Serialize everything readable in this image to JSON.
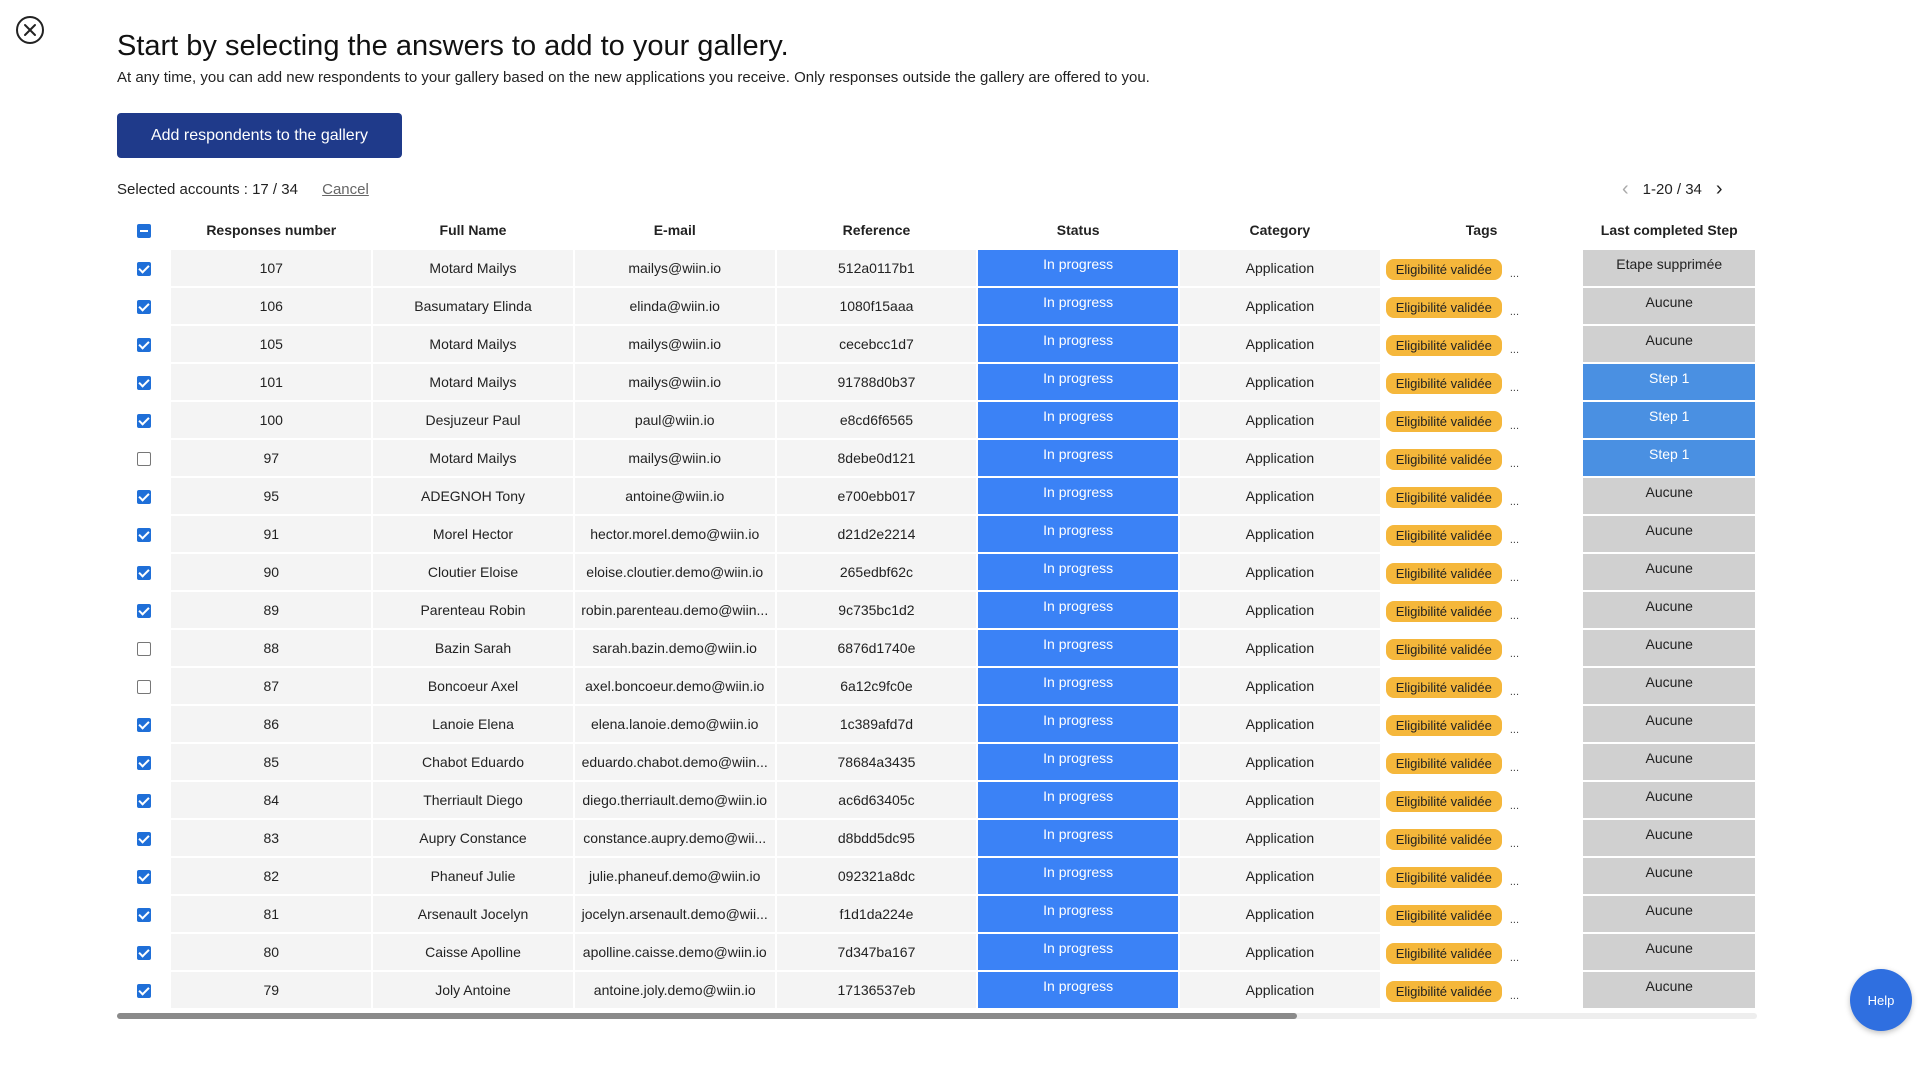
{
  "header": {
    "title": "Start by selecting the answers to add to your gallery.",
    "subtitle": "At any time, you can add new respondents to your gallery based on the new applications you receive. Only responses outside the gallery are offered to you."
  },
  "actions": {
    "add_button": "Add respondents to the gallery",
    "selected_label": "Selected accounts : 17 / 34",
    "cancel_label": "Cancel"
  },
  "pagination": {
    "range": "1-20 / 34"
  },
  "table": {
    "columns": [
      "Responses number",
      "Full Name",
      "E-mail",
      "Reference",
      "Status",
      "Category",
      "Tags",
      "Last completed Step"
    ],
    "rows": [
      {
        "checked": true,
        "number": "107",
        "name": "Motard Mailys",
        "email": "mailys@wiin.io",
        "ref": "512a0117b1",
        "status": "In progress",
        "category": "Application",
        "tag": "Eligibilité validée",
        "more": "...",
        "step": "Etape supprimée",
        "step_style": "grey"
      },
      {
        "checked": true,
        "number": "106",
        "name": "Basumatary Elinda",
        "email": "elinda@wiin.io",
        "ref": "1080f15aaa",
        "status": "In progress",
        "category": "Application",
        "tag": "Eligibilité validée",
        "more": "...",
        "step": "Aucune",
        "step_style": "grey"
      },
      {
        "checked": true,
        "number": "105",
        "name": "Motard Mailys",
        "email": "mailys@wiin.io",
        "ref": "cecebcc1d7",
        "status": "In progress",
        "category": "Application",
        "tag": "Eligibilité validée",
        "more": "...",
        "step": "Aucune",
        "step_style": "grey"
      },
      {
        "checked": true,
        "number": "101",
        "name": "Motard Mailys",
        "email": "mailys@wiin.io",
        "ref": "91788d0b37",
        "status": "In progress",
        "category": "Application",
        "tag": "Eligibilité validée",
        "more": "...",
        "step": "Step 1",
        "step_style": "blue"
      },
      {
        "checked": true,
        "number": "100",
        "name": "Desjuzeur Paul",
        "email": "paul@wiin.io",
        "ref": "e8cd6f6565",
        "status": "In progress",
        "category": "Application",
        "tag": "Eligibilité validée",
        "more": "...",
        "step": "Step 1",
        "step_style": "blue"
      },
      {
        "checked": false,
        "number": "97",
        "name": "Motard Mailys",
        "email": "mailys@wiin.io",
        "ref": "8debe0d121",
        "status": "In progress",
        "category": "Application",
        "tag": "Eligibilité validée",
        "more": "...",
        "step": "Step 1",
        "step_style": "blue"
      },
      {
        "checked": true,
        "number": "95",
        "name": "ADEGNOH Tony",
        "email": "antoine@wiin.io",
        "ref": "e700ebb017",
        "status": "In progress",
        "category": "Application",
        "tag": "Eligibilité validée",
        "more": "...",
        "step": "Aucune",
        "step_style": "grey"
      },
      {
        "checked": true,
        "number": "91",
        "name": "Morel Hector",
        "email": "hector.morel.demo@wiin.io",
        "ref": "d21d2e2214",
        "status": "In progress",
        "category": "Application",
        "tag": "Eligibilité validée",
        "more": "...",
        "step": "Aucune",
        "step_style": "grey"
      },
      {
        "checked": true,
        "number": "90",
        "name": "Cloutier Eloise",
        "email": "eloise.cloutier.demo@wiin.io",
        "ref": "265edbf62c",
        "status": "In progress",
        "category": "Application",
        "tag": "Eligibilité validée",
        "more": "...",
        "step": "Aucune",
        "step_style": "grey"
      },
      {
        "checked": true,
        "number": "89",
        "name": "Parenteau Robin",
        "email": "robin.parenteau.demo@wiin...",
        "ref": "9c735bc1d2",
        "status": "In progress",
        "category": "Application",
        "tag": "Eligibilité validée",
        "more": "...",
        "step": "Aucune",
        "step_style": "grey"
      },
      {
        "checked": false,
        "number": "88",
        "name": "Bazin Sarah",
        "email": "sarah.bazin.demo@wiin.io",
        "ref": "6876d1740e",
        "status": "In progress",
        "category": "Application",
        "tag": "Eligibilité validée",
        "more": "...",
        "step": "Aucune",
        "step_style": "grey"
      },
      {
        "checked": false,
        "number": "87",
        "name": "Boncoeur Axel",
        "email": "axel.boncoeur.demo@wiin.io",
        "ref": "6a12c9fc0e",
        "status": "In progress",
        "category": "Application",
        "tag": "Eligibilité validée",
        "more": "...",
        "step": "Aucune",
        "step_style": "grey"
      },
      {
        "checked": true,
        "number": "86",
        "name": "Lanoie Elena",
        "email": "elena.lanoie.demo@wiin.io",
        "ref": "1c389afd7d",
        "status": "In progress",
        "category": "Application",
        "tag": "Eligibilité validée",
        "more": "...",
        "step": "Aucune",
        "step_style": "grey"
      },
      {
        "checked": true,
        "number": "85",
        "name": "Chabot Eduardo",
        "email": "eduardo.chabot.demo@wiin...",
        "ref": "78684a3435",
        "status": "In progress",
        "category": "Application",
        "tag": "Eligibilité validée",
        "more": "...",
        "step": "Aucune",
        "step_style": "grey"
      },
      {
        "checked": true,
        "number": "84",
        "name": "Therriault Diego",
        "email": "diego.therriault.demo@wiin.io",
        "ref": "ac6d63405c",
        "status": "In progress",
        "category": "Application",
        "tag": "Eligibilité validée",
        "more": "...",
        "step": "Aucune",
        "step_style": "grey"
      },
      {
        "checked": true,
        "number": "83",
        "name": "Aupry Constance",
        "email": "constance.aupry.demo@wii...",
        "ref": "d8bdd5dc95",
        "status": "In progress",
        "category": "Application",
        "tag": "Eligibilité validée",
        "more": "...",
        "step": "Aucune",
        "step_style": "grey"
      },
      {
        "checked": true,
        "number": "82",
        "name": "Phaneuf Julie",
        "email": "julie.phaneuf.demo@wiin.io",
        "ref": "092321a8dc",
        "status": "In progress",
        "category": "Application",
        "tag": "Eligibilité validée",
        "more": "...",
        "step": "Aucune",
        "step_style": "grey"
      },
      {
        "checked": true,
        "number": "81",
        "name": "Arsenault Jocelyn",
        "email": "jocelyn.arsenault.demo@wii...",
        "ref": "f1d1da224e",
        "status": "In progress",
        "category": "Application",
        "tag": "Eligibilité validée",
        "more": "...",
        "step": "Aucune",
        "step_style": "grey"
      },
      {
        "checked": true,
        "number": "80",
        "name": "Caisse Apolline",
        "email": "apolline.caisse.demo@wiin.io",
        "ref": "7d347ba167",
        "status": "In progress",
        "category": "Application",
        "tag": "Eligibilité validée",
        "more": "...",
        "step": "Aucune",
        "step_style": "grey"
      },
      {
        "checked": true,
        "number": "79",
        "name": "Joly Antoine",
        "email": "antoine.joly.demo@wiin.io",
        "ref": "17136537eb",
        "status": "In progress",
        "category": "Application",
        "tag": "Eligibilité validée",
        "more": "...",
        "step": "Aucune",
        "step_style": "grey"
      }
    ]
  },
  "help": {
    "label": "Help"
  },
  "colors": {
    "primary": "#1f3a8a",
    "status": "#3b82f6",
    "tag": "#f5b73b",
    "step_blue": "#4a90e2",
    "step_grey": "#d0d0d0",
    "help": "#2f6fe0"
  }
}
